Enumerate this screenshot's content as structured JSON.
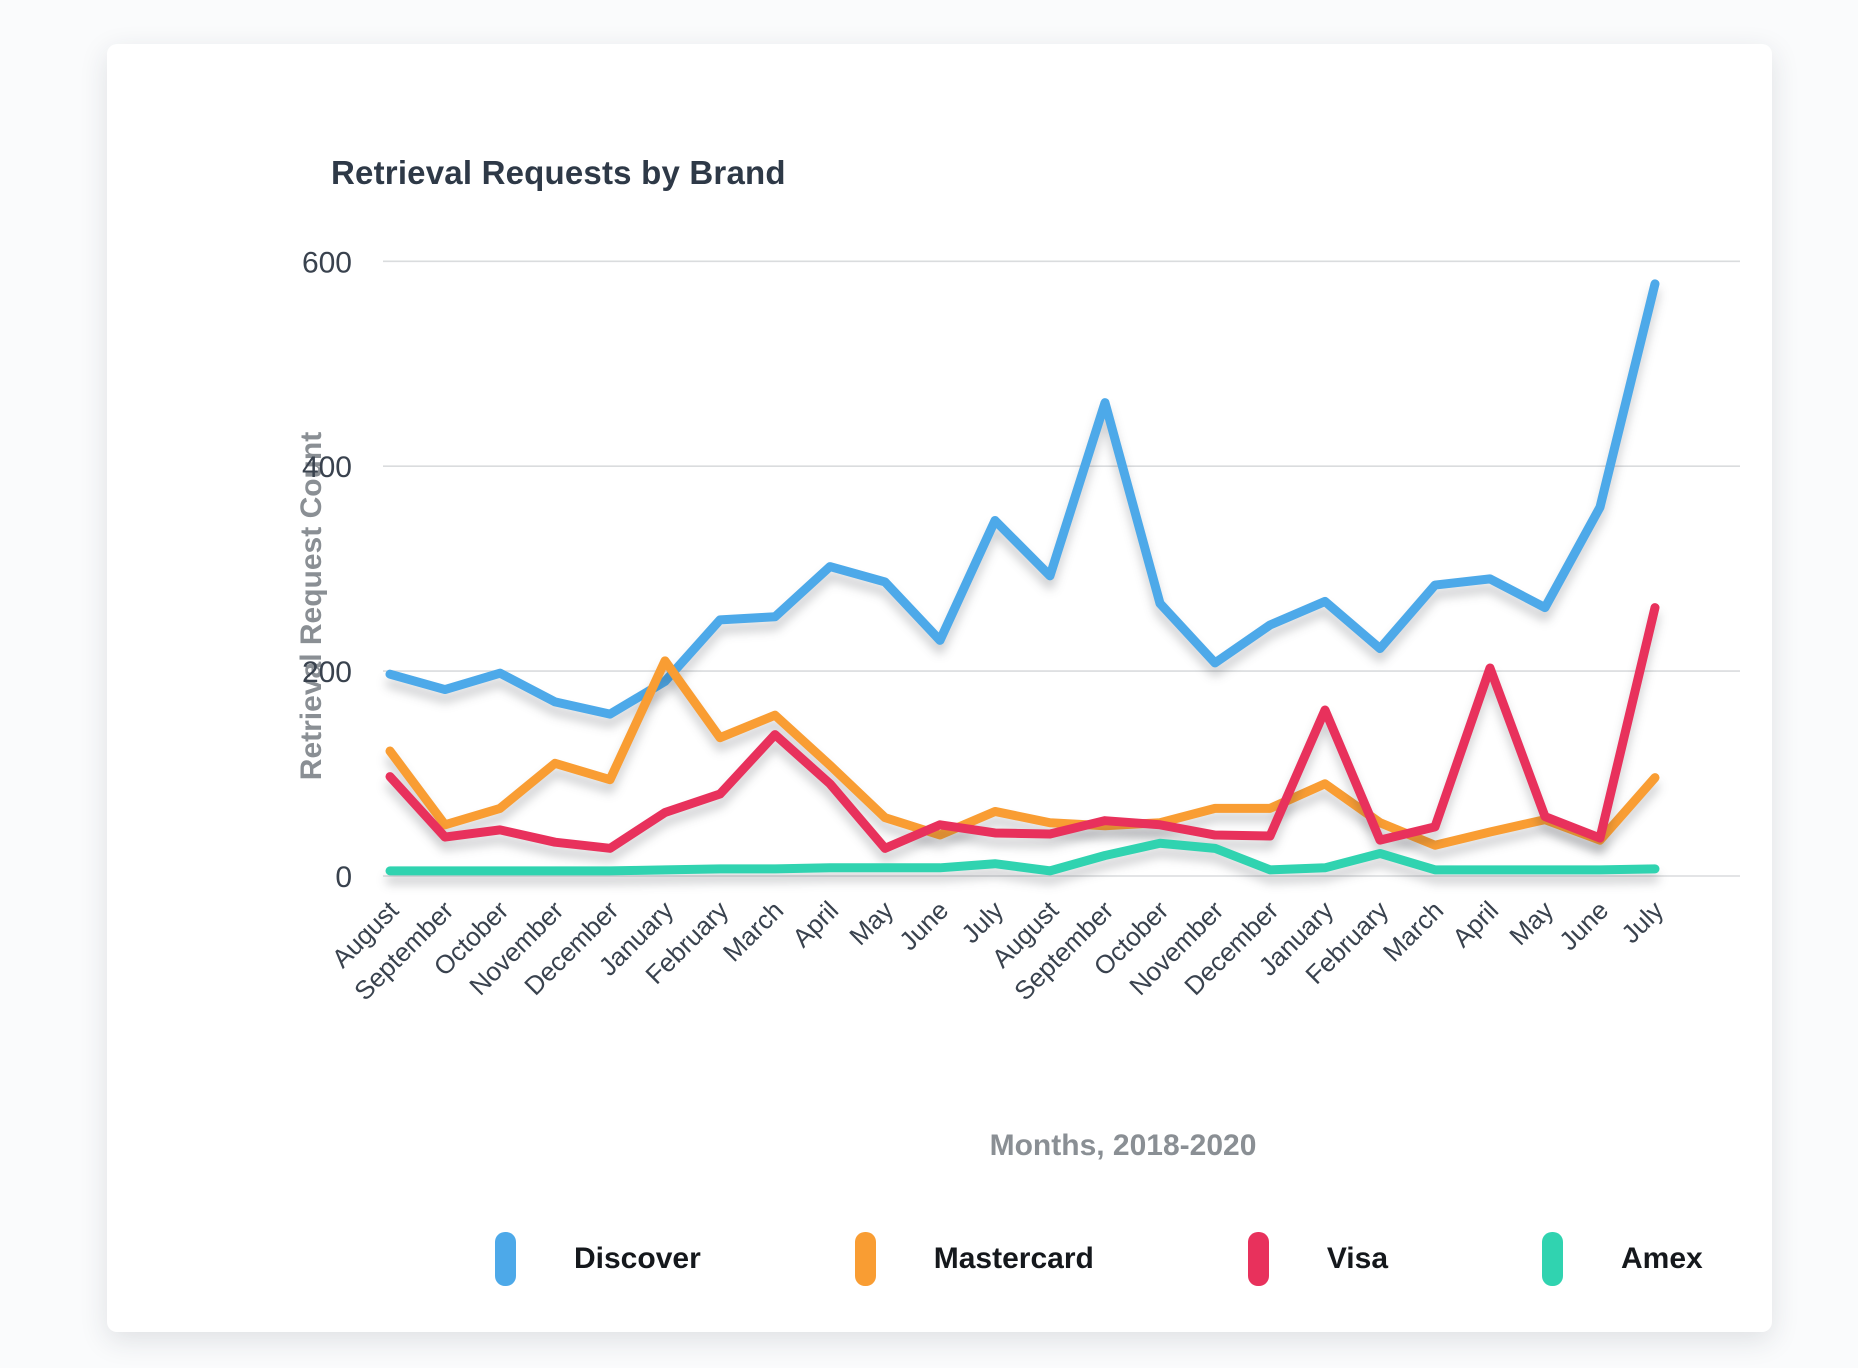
{
  "card": {
    "title": "Retrieval Requests by Brand"
  },
  "chart_data": {
    "type": "line",
    "title": "Retrieval Requests by Brand",
    "xlabel": "Months, 2018-2020",
    "ylabel": "Retrieval Request Count",
    "ylim": [
      0,
      620
    ],
    "yticks": [
      0,
      200,
      400,
      600
    ],
    "grid": true,
    "legend_position": "bottom",
    "categories": [
      "August",
      "September",
      "October",
      "November",
      "December",
      "January",
      "February",
      "March",
      "April",
      "May",
      "June",
      "July",
      "August",
      "September",
      "October",
      "November",
      "December",
      "January",
      "February",
      "March",
      "April",
      "May",
      "June",
      "July"
    ],
    "series": [
      {
        "name": "Discover",
        "color": "#4da9e9",
        "values": [
          197,
          182,
          198,
          170,
          158,
          190,
          250,
          253,
          302,
          287,
          230,
          347,
          293,
          462,
          266,
          208,
          245,
          268,
          222,
          284,
          290,
          262,
          360,
          578
        ]
      },
      {
        "name": "Mastercard",
        "color": "#f99d33",
        "values": [
          122,
          50,
          66,
          110,
          94,
          210,
          135,
          157,
          108,
          57,
          40,
          63,
          52,
          49,
          52,
          66,
          66,
          90,
          52,
          30,
          43,
          55,
          35,
          96
        ]
      },
      {
        "name": "Visa",
        "color": "#e8315c",
        "values": [
          97,
          38,
          45,
          33,
          27,
          62,
          80,
          138,
          90,
          27,
          50,
          42,
          41,
          54,
          50,
          40,
          39,
          162,
          35,
          48,
          203,
          58,
          37,
          262
        ]
      },
      {
        "name": "Amex",
        "color": "#30d3b0",
        "values": [
          5,
          5,
          5,
          5,
          5,
          6,
          7,
          7,
          8,
          8,
          8,
          12,
          5,
          20,
          32,
          27,
          6,
          8,
          22,
          6,
          6,
          6,
          6,
          7
        ]
      }
    ]
  }
}
